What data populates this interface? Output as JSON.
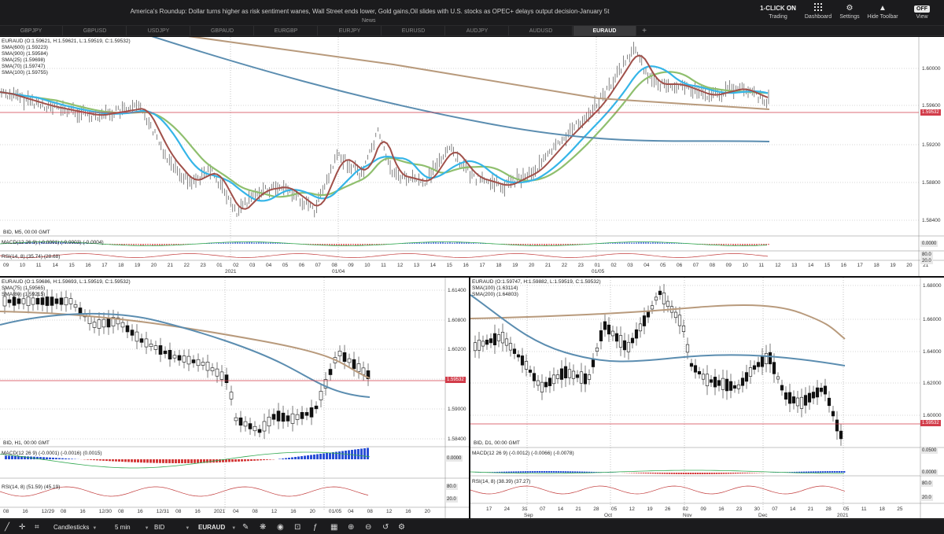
{
  "header": {
    "news_title": "America's Roundup: Dollar turns higher as risk sentiment wanes, Wall Street ends lower, Gold gains,Oil slides with U.S. stocks as OPEC+ delays output decision-January 5t",
    "news_label": "News",
    "oneclick_prefix": "1-CLICK",
    "oneclick_state": "ON",
    "oneclick_label": "Trading",
    "dashboard_label": "Dashboard",
    "settings_label": "Settings",
    "hide_toolbar_label": "Hide Toolbar",
    "view_label": "View",
    "view_icon_text": "OFF"
  },
  "tabs": [
    "GBPJPY",
    "GBPUSD",
    "USDJPY",
    "GBPAUD",
    "EURGBP",
    "EURJPY",
    "EURUSD",
    "AUDJPY",
    "AUDUSD",
    "EURAUD"
  ],
  "active_tab": "EURAUD",
  "add_tab_label": "+",
  "top_chart": {
    "info": [
      "EURAUD (O:1.59621, H:1.59621, L:1.59519, C:1.59532)",
      "SMA(600) (1.59223)",
      "SMA(900) (1.59584)",
      "SMA(25) (1.59698)",
      "SMA(70) (1.59747)",
      "SMA(100) (1.59755)"
    ],
    "price_labels": [
      "1.60000",
      "1.59600",
      "1.59200",
      "1.58800",
      "1.58400"
    ],
    "current_price": "1.59532",
    "bid_label": "BID, M5, 00:00 GMT",
    "macd_label": "MACD(12 26 9) (-0.0001) (-0.0003) (-0.0004)",
    "macd_value": "0.0000",
    "rsi_label": "RSI(14, 8) (35.74) (28.68)",
    "rsi_values": [
      "80.0",
      "20.0"
    ],
    "time_labels": [
      "09",
      "10",
      "11",
      "14",
      "15",
      "16",
      "17",
      "18",
      "19",
      "20",
      "21",
      "22",
      "23",
      "01",
      "02",
      "03",
      "04",
      "05",
      "06",
      "07",
      "08",
      "09",
      "10",
      "11",
      "12",
      "13",
      "14",
      "15",
      "16",
      "17",
      "18",
      "19",
      "20",
      "21",
      "22",
      "23",
      "01",
      "02",
      "03",
      "04",
      "05",
      "06",
      "07",
      "08",
      "09",
      "10",
      "11",
      "12",
      "13",
      "14",
      "15",
      "16",
      "17",
      "18",
      "19",
      "20",
      "21"
    ],
    "date_labels": [
      "2021",
      "01/04",
      "01/05"
    ]
  },
  "bl_chart": {
    "info": [
      "EURAUD (O:1.59686, H:1.59693, L:1.59519, C:1.59532)",
      "SMA(75) (1.59565)",
      "SMA(80) (1.59215)"
    ],
    "price_labels": [
      "1.61400",
      "1.60800",
      "1.60200",
      "1.59600",
      "1.59000",
      "1.58400"
    ],
    "current_price": "1.59532",
    "bid_label": "BID, H1, 00:00 GMT",
    "macd_label": "MACD(12 26 9) (-0.0001) (-0.0016) (0.0015)",
    "macd_value": "0.0000",
    "rsi_label": "RSI(14, 8) (51.59) (45.19)",
    "rsi_values": [
      "80.0",
      "20.0"
    ],
    "time_labels": [
      "08",
      "16",
      "12/29",
      "08",
      "16",
      "12/30",
      "08",
      "16",
      "12/31",
      "08",
      "16",
      "2021",
      "04",
      "08",
      "12",
      "16",
      "20",
      "01/05",
      "04",
      "08",
      "12",
      "16",
      "20"
    ],
    "date_labels": [
      "12/29",
      "12/30",
      "12/31",
      "2021",
      "01/04",
      "01/05"
    ]
  },
  "br_chart": {
    "info": [
      "EURAUD (O:1.59747, H:1.59882, L:1.59519, C:1.59532)",
      "SMA(100) (1.63114)",
      "SMA(200) (1.64803)"
    ],
    "price_labels": [
      "1.68000",
      "1.66000",
      "1.64000",
      "1.62000",
      "1.60000"
    ],
    "current_price": "1.59532",
    "bid_label": "BID, D1, 00:00 GMT",
    "macd_label": "MACD(12 26 9) (-0.0012) (-0.0066) (-0.0078)",
    "macd_values": [
      "0.0500",
      "0.0000"
    ],
    "rsi_label": "RSI(14, 8) (38.39) (37.27)",
    "rsi_values": [
      "80.0",
      "20.0"
    ],
    "time_labels": [
      "17",
      "24",
      "31",
      "07",
      "14",
      "21",
      "28",
      "05",
      "12",
      "19",
      "26",
      "02",
      "09",
      "16",
      "23",
      "30",
      "07",
      "14",
      "21",
      "28",
      "05",
      "11",
      "18",
      "25"
    ],
    "month_labels": [
      "Sep",
      "Oct",
      "Nov",
      "Dec",
      "2021"
    ]
  },
  "toolbar": {
    "chart_type": "Candlesticks",
    "timeframe": "5 min",
    "price_type": "BID",
    "symbol": "EURAUD"
  },
  "colors": {
    "up_line": "#c0392b",
    "sma_brown": "#b89a7c",
    "sma_blue": "#5b8db0",
    "sma_lightblue": "#35b5e8",
    "sma_green": "#8fbf6e",
    "sma_red": "#a0504a",
    "price_line": "#d23c4a"
  }
}
